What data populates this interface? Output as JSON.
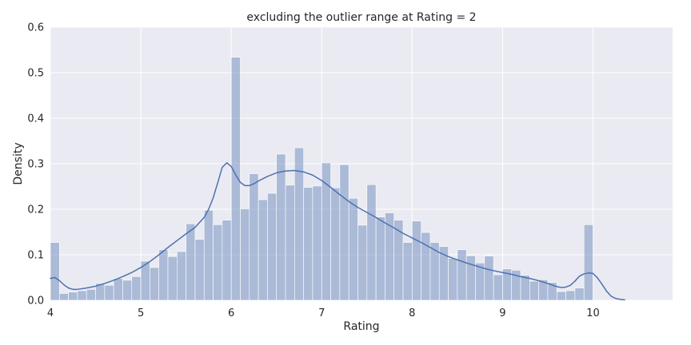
{
  "chart_data": {
    "type": "bar",
    "title": "excluding the outlier range at Rating = 2",
    "xlabel": "Rating",
    "ylabel": "Density",
    "xlim": [
      4,
      10.88
    ],
    "ylim": [
      0,
      0.6
    ],
    "xticks": [
      "4",
      "5",
      "6",
      "7",
      "8",
      "9",
      "10"
    ],
    "yticks": [
      "0.0",
      "0.1",
      "0.2",
      "0.3",
      "0.4",
      "0.5",
      "0.6"
    ],
    "grid": true,
    "background": "#eaeaf2",
    "bar_color": "#4c72b0",
    "bar_opacity": 0.4,
    "line_color": "#4c72b0",
    "histogram": {
      "bin_start": 4.0,
      "bin_width": 0.1,
      "values": [
        0.127,
        0.015,
        0.018,
        0.021,
        0.024,
        0.037,
        0.033,
        0.048,
        0.044,
        0.052,
        0.086,
        0.072,
        0.111,
        0.096,
        0.107,
        0.168,
        0.134,
        0.198,
        0.166,
        0.176,
        0.534,
        0.201,
        0.278,
        0.221,
        0.235,
        0.321,
        0.253,
        0.335,
        0.248,
        0.251,
        0.302,
        0.247,
        0.298,
        0.224,
        0.165,
        0.254,
        0.183,
        0.192,
        0.176,
        0.127,
        0.174,
        0.149,
        0.127,
        0.118,
        0.092,
        0.111,
        0.098,
        0.082,
        0.097,
        0.056,
        0.069,
        0.066,
        0.055,
        0.042,
        0.045,
        0.039,
        0.019,
        0.021,
        0.027,
        0.166
      ]
    },
    "kde": {
      "x": [
        4.0,
        4.05,
        4.1,
        4.15,
        4.2,
        4.25,
        4.3,
        4.4,
        4.5,
        4.6,
        4.7,
        4.8,
        4.9,
        5.0,
        5.1,
        5.2,
        5.3,
        5.4,
        5.5,
        5.6,
        5.7,
        5.75,
        5.8,
        5.85,
        5.9,
        5.95,
        6.0,
        6.05,
        6.1,
        6.15,
        6.2,
        6.25,
        6.3,
        6.4,
        6.5,
        6.6,
        6.7,
        6.8,
        6.9,
        7.0,
        7.1,
        7.2,
        7.3,
        7.4,
        7.5,
        7.6,
        7.7,
        7.8,
        7.9,
        8.0,
        8.1,
        8.2,
        8.3,
        8.4,
        8.5,
        8.6,
        8.7,
        8.8,
        8.9,
        9.0,
        9.1,
        9.2,
        9.3,
        9.4,
        9.5,
        9.6,
        9.65,
        9.7,
        9.75,
        9.8,
        9.85,
        9.9,
        9.95,
        10.0,
        10.05,
        10.1,
        10.15,
        10.2,
        10.25,
        10.3,
        10.35
      ],
      "y": [
        0.048,
        0.05,
        0.043,
        0.034,
        0.027,
        0.024,
        0.024,
        0.027,
        0.031,
        0.037,
        0.044,
        0.052,
        0.061,
        0.072,
        0.085,
        0.1,
        0.116,
        0.131,
        0.146,
        0.16,
        0.182,
        0.2,
        0.225,
        0.258,
        0.292,
        0.302,
        0.294,
        0.275,
        0.259,
        0.252,
        0.252,
        0.256,
        0.262,
        0.272,
        0.28,
        0.284,
        0.285,
        0.282,
        0.275,
        0.263,
        0.248,
        0.232,
        0.217,
        0.204,
        0.193,
        0.182,
        0.17,
        0.159,
        0.147,
        0.137,
        0.127,
        0.116,
        0.105,
        0.096,
        0.089,
        0.082,
        0.076,
        0.07,
        0.065,
        0.061,
        0.057,
        0.052,
        0.048,
        0.043,
        0.037,
        0.03,
        0.028,
        0.029,
        0.033,
        0.042,
        0.053,
        0.058,
        0.06,
        0.059,
        0.049,
        0.035,
        0.02,
        0.009,
        0.004,
        0.002,
        0.001
      ]
    }
  }
}
